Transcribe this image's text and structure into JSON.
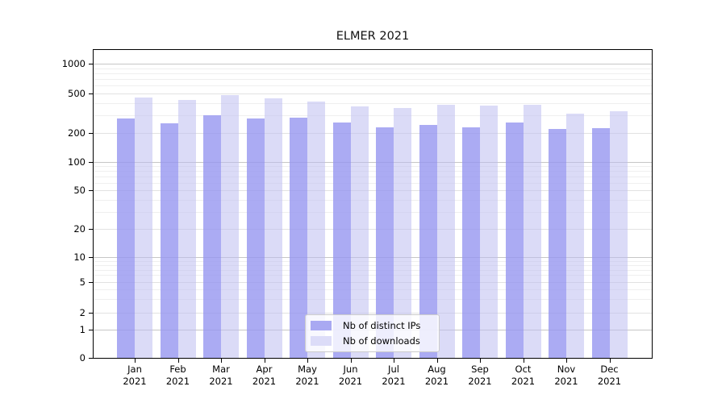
{
  "figure": {
    "title": "ELMER 2021"
  },
  "chart_data": {
    "type": "bar",
    "title": "ELMER 2021",
    "categories": [
      "Jan 2021",
      "Feb 2021",
      "Mar 2021",
      "Apr 2021",
      "May 2021",
      "Jun 2021",
      "Jul 2021",
      "Aug 2021",
      "Sep 2021",
      "Oct 2021",
      "Nov 2021",
      "Dec 2021"
    ],
    "series": [
      {
        "name": "Nb of distinct IPs",
        "color": "#a9a9f2",
        "values": [
          280,
          250,
          300,
          280,
          285,
          255,
          230,
          240,
          230,
          255,
          220,
          225
        ]
      },
      {
        "name": "Nb of downloads",
        "color": "#dcdcf8",
        "values": [
          455,
          430,
          480,
          445,
          415,
          370,
          360,
          385,
          375,
          385,
          315,
          330
        ]
      }
    ],
    "yscale": "symlog",
    "yticks": [
      0,
      1,
      2,
      5,
      10,
      20,
      50,
      100,
      200,
      500,
      1000
    ],
    "ylim": [
      0,
      1400
    ],
    "grid": true,
    "legend_position": "lower center",
    "colors": {
      "bar_distinct_ips": "#a9a9f2",
      "bar_downloads": "#dcdcf8",
      "grid_major": "#c6c6c6",
      "grid_minor": "#efefef",
      "axis": "#000000"
    }
  }
}
